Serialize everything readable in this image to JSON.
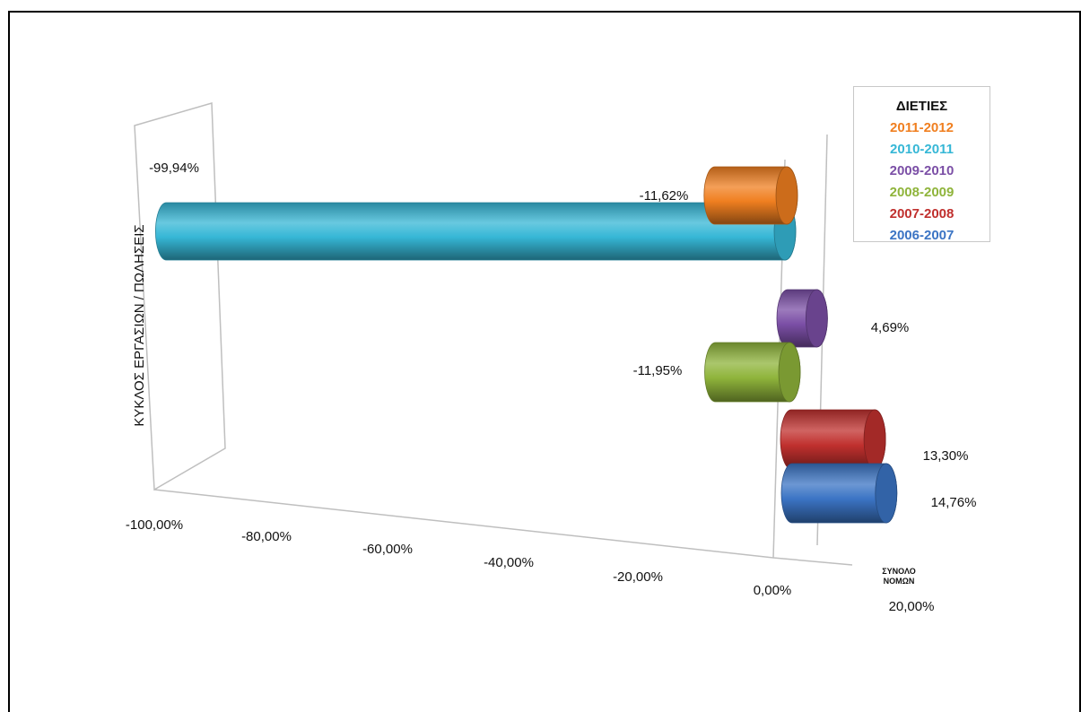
{
  "chart_data": {
    "type": "bar",
    "orientation": "horizontal",
    "style": "3d-cylinder",
    "ylabel": "ΚΥΚΛΟΣ ΕΡΓΑΣΙΩΝ / ΠΩΛΗΣΕΙΣ",
    "category": "ΣΥΝΟΛΟ ΝΟΜΩΝ",
    "category_lines": [
      "ΣΥΝΟΛΟ",
      "ΝΟΜΩΝ"
    ],
    "xlim": [
      -100,
      20
    ],
    "x_ticks": [
      "-100,00%",
      "-80,00%",
      "-60,00%",
      "-40,00%",
      "-20,00%",
      "0,00%",
      "20,00%"
    ],
    "legend_title": "ΔΙΕΤΙΕΣ",
    "legend_position": "top-right",
    "series": [
      {
        "name": "2011-2012",
        "value": -11.62,
        "label": "-11,62%",
        "color": "#f07f20"
      },
      {
        "name": "2010-2011",
        "value": -99.94,
        "label": "-99,94%",
        "color": "#36b7d6"
      },
      {
        "name": "2009-2010",
        "value": 4.69,
        "label": "4,69%",
        "color": "#7b4fa6"
      },
      {
        "name": "2008-2009",
        "value": -11.95,
        "label": "-11,95%",
        "color": "#8fb43b"
      },
      {
        "name": "2007-2008",
        "value": 13.3,
        "label": "13,30%",
        "color": "#c0302e"
      },
      {
        "name": "2006-2007",
        "value": 14.76,
        "label": "14,76%",
        "color": "#3b74c4"
      }
    ]
  }
}
